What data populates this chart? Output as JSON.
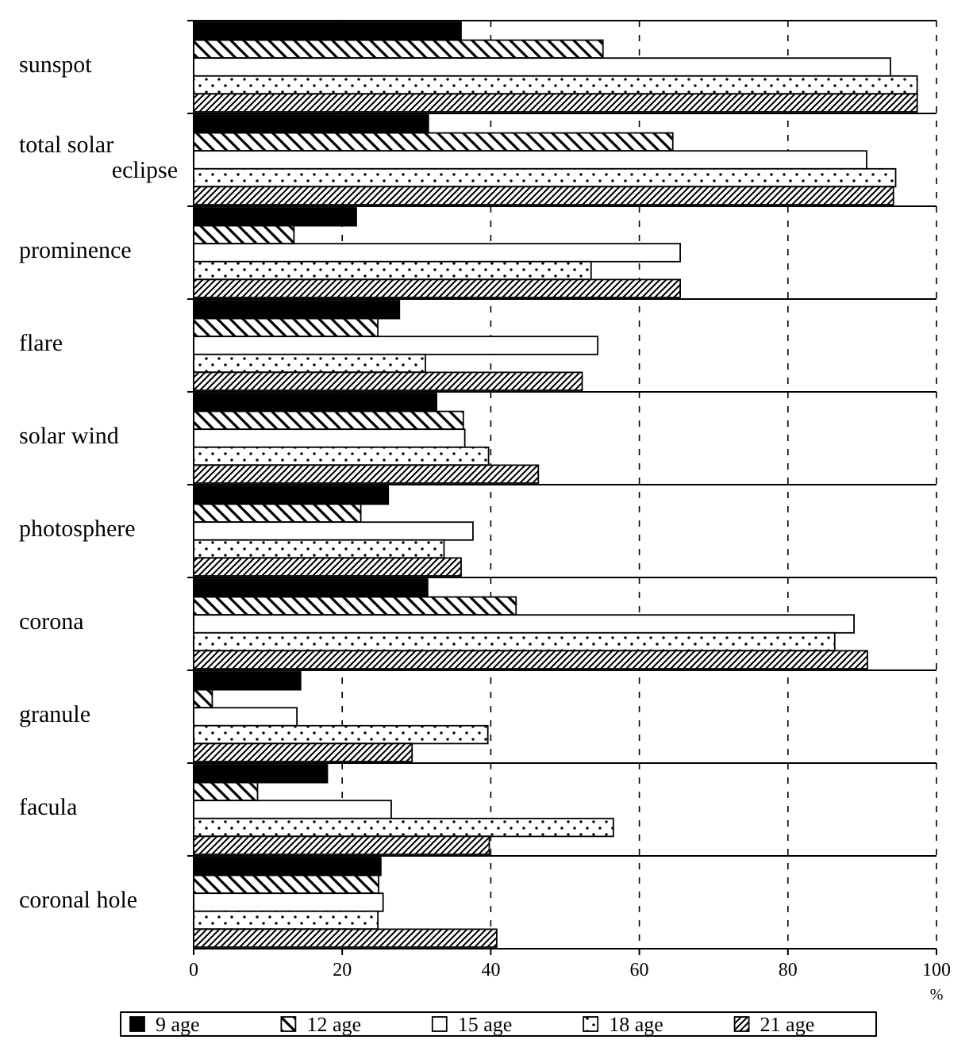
{
  "chart_data": {
    "type": "bar",
    "orientation": "horizontal",
    "categories": [
      "sunspot",
      "total solar eclipse",
      "prominence",
      "flare",
      "solar wind",
      "photosphere",
      "corona",
      "granule",
      "facula",
      "coronal hole"
    ],
    "series": [
      {
        "name": "9 age",
        "color": "#000000",
        "values": [
          36.0,
          31.6,
          21.9,
          27.7,
          32.7,
          26.2,
          31.5,
          14.4,
          18.0,
          25.2
        ]
      },
      {
        "name": "12 age",
        "color": "#000000",
        "values": [
          55.1,
          64.5,
          13.5,
          24.8,
          36.3,
          22.5,
          43.4,
          2.5,
          8.6,
          24.9
        ]
      },
      {
        "name": "15 age",
        "color": "#000000",
        "values": [
          93.8,
          90.6,
          65.5,
          54.4,
          36.5,
          37.6,
          88.9,
          13.9,
          26.6,
          25.5
        ]
      },
      {
        "name": "18 age",
        "color": "#000000",
        "values": [
          97.4,
          94.5,
          53.5,
          31.2,
          39.7,
          33.7,
          86.3,
          39.6,
          56.5,
          24.8
        ]
      },
      {
        "name": "21 age",
        "color": "#000000",
        "values": [
          97.4,
          94.2,
          65.5,
          52.3,
          46.4,
          36.0,
          90.7,
          29.4,
          39.8,
          40.8
        ]
      }
    ],
    "xlim": [
      0,
      100
    ],
    "xticks": [
      0,
      20,
      40,
      60,
      80,
      100
    ],
    "xlabel": "%",
    "grid": "x",
    "legend": "bottom"
  }
}
